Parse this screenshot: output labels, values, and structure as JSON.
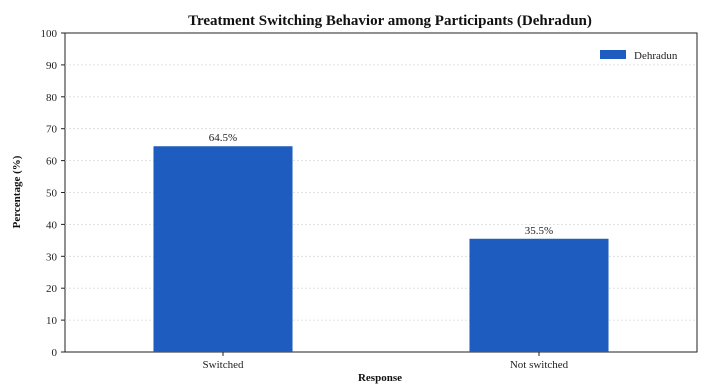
{
  "chart_data": {
    "type": "bar",
    "title": "Treatment Switching Behavior among Participants (Dehradun)",
    "xlabel": "Response",
    "ylabel": "Percentage (%)",
    "categories": [
      "Switched",
      "Not switched"
    ],
    "series": [
      {
        "name": "Dehradun",
        "values": [
          64.5,
          35.5
        ],
        "color": "#1f5cbf"
      }
    ],
    "data_labels": [
      "64.5%",
      "35.5%"
    ],
    "ylim": [
      0,
      100
    ],
    "yticks": [
      0,
      10,
      20,
      30,
      40,
      50,
      60,
      70,
      80,
      90,
      100
    ],
    "grid": "horizontal",
    "legend_position": "top-right"
  }
}
